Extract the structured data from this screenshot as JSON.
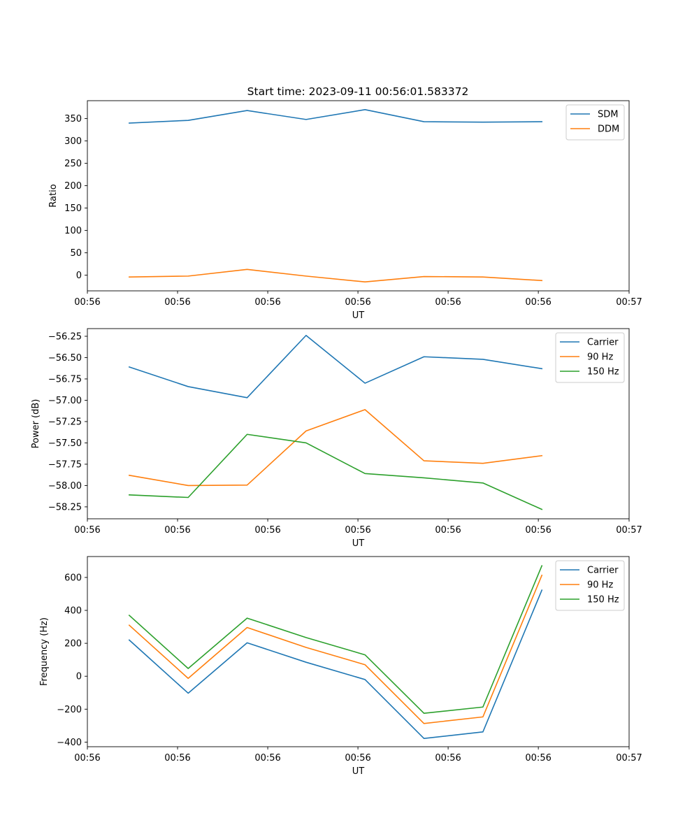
{
  "figure": {
    "title": "Start time: 2023-09-11 00:56:01.583372"
  },
  "chart_data": [
    {
      "type": "line",
      "title": "Start time: 2023-09-11 00:56:01.583372",
      "xlabel": "UT",
      "ylabel": "Ratio",
      "x": [
        0,
        1,
        2,
        3,
        4,
        5,
        6,
        7
      ],
      "xlim": [
        -0.71,
        8.48
      ],
      "xticks": [
        -0.71,
        0.82,
        2.35,
        3.88,
        5.41,
        6.94,
        8.48
      ],
      "xtick_labels": [
        "00:56",
        "00:56",
        "00:56",
        "00:56",
        "00:56",
        "00:56",
        "00:57"
      ],
      "ylim": [
        -35,
        390
      ],
      "yticks": [
        0,
        50,
        100,
        150,
        200,
        250,
        300,
        350
      ],
      "ytick_labels": [
        "0",
        "50",
        "100",
        "150",
        "200",
        "250",
        "300",
        "350"
      ],
      "legend_position": "upper right",
      "series": [
        {
          "name": "SDM",
          "color": "#1f77b4",
          "values": [
            340,
            346,
            368,
            348,
            370,
            343,
            342,
            343
          ]
        },
        {
          "name": "DDM",
          "color": "#ff7f0e",
          "values": [
            -4,
            -2,
            13,
            -2,
            -15,
            -3,
            -4,
            -12
          ]
        }
      ]
    },
    {
      "type": "line",
      "title": "",
      "xlabel": "UT",
      "ylabel": "Power (dB)",
      "x": [
        0,
        1,
        2,
        3,
        4,
        5,
        6,
        7
      ],
      "xlim": [
        -0.71,
        8.48
      ],
      "xticks": [
        -0.71,
        0.82,
        2.35,
        3.88,
        5.41,
        6.94,
        8.48
      ],
      "xtick_labels": [
        "00:56",
        "00:56",
        "00:56",
        "00:56",
        "00:56",
        "00:56",
        "00:57"
      ],
      "ylim": [
        -58.39,
        -56.16
      ],
      "yticks": [
        -58.25,
        -58.0,
        -57.75,
        -57.5,
        -57.25,
        -57.0,
        -56.75,
        -56.5,
        -56.25
      ],
      "ytick_labels": [
        "−58.25",
        "−58.00",
        "−57.75",
        "−57.50",
        "−57.25",
        "−57.00",
        "−56.75",
        "−56.50",
        "−56.25"
      ],
      "legend_position": "upper right",
      "series": [
        {
          "name": "Carrier",
          "color": "#1f77b4",
          "values": [
            -56.61,
            -56.84,
            -56.97,
            -56.24,
            -56.8,
            -56.49,
            -56.52,
            -56.63
          ]
        },
        {
          "name": "90 Hz",
          "color": "#ff7f0e",
          "values": [
            -57.88,
            -58.0,
            -57.995,
            -57.36,
            -57.11,
            -57.71,
            -57.74,
            -57.65
          ]
        },
        {
          "name": "150 Hz",
          "color": "#2ca02c",
          "values": [
            -58.11,
            -58.14,
            -57.4,
            -57.5,
            -57.86,
            -57.91,
            -57.97,
            -58.28
          ]
        }
      ]
    },
    {
      "type": "line",
      "title": "",
      "xlabel": "UT",
      "ylabel": "Frequency (Hz)",
      "x": [
        0,
        1,
        2,
        3,
        4,
        5,
        6,
        7
      ],
      "xlim": [
        -0.71,
        8.48
      ],
      "xticks": [
        -0.71,
        0.82,
        2.35,
        3.88,
        5.41,
        6.94,
        8.48
      ],
      "xtick_labels": [
        "00:56",
        "00:56",
        "00:56",
        "00:56",
        "00:56",
        "00:56",
        "00:57"
      ],
      "ylim": [
        -428,
        727
      ],
      "yticks": [
        -400,
        -200,
        0,
        200,
        400,
        600
      ],
      "ytick_labels": [
        "−400",
        "−200",
        "0",
        "200",
        "400",
        "600"
      ],
      "legend_position": "upper right",
      "series": [
        {
          "name": "Carrier",
          "color": "#1f77b4",
          "values": [
            220,
            -103,
            203,
            85,
            -20,
            -378,
            -338,
            523
          ]
        },
        {
          "name": "90 Hz",
          "color": "#ff7f0e",
          "values": [
            310,
            -13,
            296,
            175,
            70,
            -287,
            -247,
            613
          ]
        },
        {
          "name": "150 Hz",
          "color": "#2ca02c",
          "values": [
            370,
            47,
            353,
            235,
            130,
            -225,
            -187,
            671
          ]
        }
      ]
    }
  ]
}
